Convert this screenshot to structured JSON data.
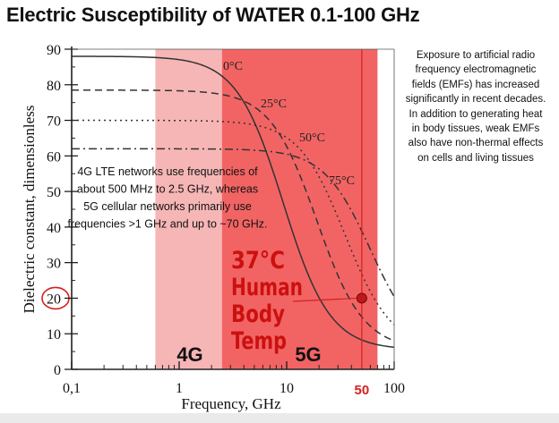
{
  "header": {
    "title": "Electric Susceptibility of WATER 0.1-100 GHz"
  },
  "side_note": {
    "lines": [
      "Exposure to artificial radio",
      "frequency electromagnetic",
      "fields (EMFs) has increased",
      "significantly in recent decades.",
      "In addition to generating heat",
      "in body tissues, weak EMFs",
      "also have non-thermal effects",
      "on cells and living tissues"
    ]
  },
  "chart_data": {
    "type": "line",
    "title": "Electric Susceptibility of WATER 0.1-100 GHz",
    "xlabel": "Frequency, GHz",
    "ylabel": "Dielectric constant, dimensionless",
    "x_scale": "log",
    "xlim": [
      0.1,
      100
    ],
    "ylim": [
      0,
      90
    ],
    "x_ticks": [
      {
        "value": 0.1,
        "label": "0,1"
      },
      {
        "value": 1,
        "label": "1"
      },
      {
        "value": 10,
        "label": "10"
      },
      {
        "value": 100,
        "label": "100"
      }
    ],
    "y_ticks": [
      0,
      10,
      20,
      30,
      40,
      50,
      60,
      70,
      80,
      90
    ],
    "series": [
      {
        "name": "0°C",
        "label": "0°C",
        "style": "solid",
        "static": 88,
        "high_freq_limit": 5.5,
        "relaxation_ghz": 9.3
      },
      {
        "name": "25°C",
        "label": "25°C",
        "style": "dashed",
        "static": 78.5,
        "high_freq_limit": 5.5,
        "relaxation_ghz": 19
      },
      {
        "name": "50°C",
        "label": "50°C",
        "style": "dotted",
        "static": 70,
        "high_freq_limit": 5.5,
        "relaxation_ghz": 35
      },
      {
        "name": "75°C",
        "label": "75°C",
        "style": "dash-dot",
        "static": 62,
        "high_freq_limit": 5.5,
        "relaxation_ghz": 60
      }
    ],
    "bands": [
      {
        "name": "4G",
        "label": "4G",
        "from_ghz": 0.6,
        "to_ghz": 2.5,
        "color": "#f7b6b6"
      },
      {
        "name": "5G",
        "label": "5G",
        "from_ghz": 2.5,
        "to_ghz": 70,
        "color": "#f26464"
      }
    ],
    "band_note": [
      "4G LTE networks use frequencies of",
      "about 500 MHz to 2.5 GHz, whereas",
      "5G cellular networks primarily use",
      "frequencies >1 GHz and up to ~70 GHz."
    ],
    "annotations": {
      "highlight_frequency": {
        "value": 50,
        "label": "50",
        "color": "#d42020"
      },
      "highlight_y": {
        "value": 20,
        "label": "20"
      },
      "point": {
        "x": 50,
        "y": 20,
        "color": "#c01818"
      },
      "body_temp_label": [
        "37°C",
        "Human",
        "Body",
        "Temp"
      ]
    },
    "colors": {
      "accent": "#e52e2e",
      "axis": "#222222",
      "curve": "#333333"
    }
  }
}
